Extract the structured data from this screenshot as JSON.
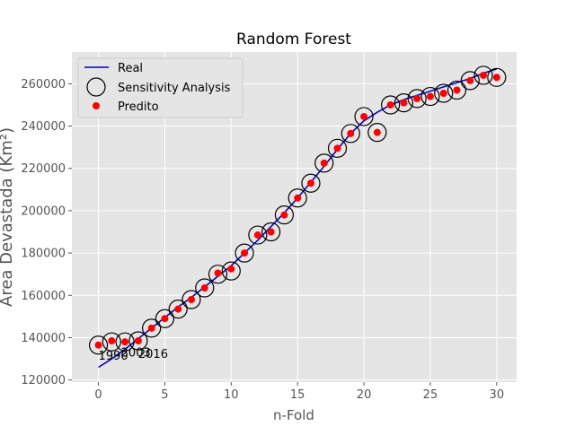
{
  "chart_data": {
    "type": "scatter",
    "title": "Random Forest",
    "xlabel": "n-Fold",
    "ylabel": "Área Devastada (Km²)",
    "xlim": [
      -2,
      31.5
    ],
    "ylim": [
      119000,
      275000
    ],
    "xticks": [
      0,
      5,
      10,
      15,
      20,
      25,
      30
    ],
    "yticks": [
      120000,
      140000,
      160000,
      180000,
      200000,
      220000,
      240000,
      260000
    ],
    "grid": true,
    "legend_position": "upper-left",
    "colors": {
      "background": "#e5e5e5",
      "grid": "#ffffff",
      "real": "#0000cc",
      "predito": "#ff0000",
      "sensitivity_edge": "#000000"
    },
    "series": [
      {
        "name": "Real",
        "style": "line",
        "x": [
          0,
          1,
          2,
          3,
          4,
          5,
          6,
          7,
          8,
          9,
          10,
          11,
          12,
          13,
          14,
          15,
          16,
          17,
          18,
          19,
          20,
          21,
          22,
          23,
          24,
          25,
          26,
          27,
          28,
          29,
          30
        ],
        "values": [
          126000,
          130000,
          134500,
          139500,
          144500,
          149500,
          154500,
          159000,
          164000,
          169000,
          174000,
          180000,
          186000,
          192500,
          199000,
          206000,
          213500,
          221000,
          229000,
          236500,
          242500,
          246500,
          250000,
          252500,
          254500,
          256500,
          258500,
          260500,
          262500,
          265000,
          267000
        ]
      },
      {
        "name": "Sensitivity Analysis",
        "style": "open-circle",
        "x": [
          0,
          1,
          2,
          3,
          4,
          5,
          6,
          7,
          8,
          9,
          10,
          11,
          12,
          13,
          14,
          15,
          16,
          17,
          18,
          19,
          20,
          21,
          22,
          23,
          24,
          25,
          26,
          27,
          28,
          29,
          30
        ],
        "values": [
          136500,
          138000,
          138000,
          138500,
          144500,
          149000,
          153500,
          158000,
          163500,
          170000,
          171500,
          180000,
          188500,
          190000,
          198000,
          206000,
          213000,
          222500,
          229500,
          236500,
          244500,
          237000,
          250000,
          251000,
          253000,
          254000,
          255500,
          257000,
          261500,
          264000,
          263000
        ]
      },
      {
        "name": "Predito",
        "style": "dot",
        "x": [
          0,
          1,
          2,
          3,
          4,
          5,
          6,
          7,
          8,
          9,
          10,
          11,
          12,
          13,
          14,
          15,
          16,
          17,
          18,
          19,
          20,
          21,
          22,
          23,
          24,
          25,
          26,
          27,
          28,
          29,
          30
        ],
        "values": [
          136500,
          138500,
          138000,
          138500,
          144500,
          149000,
          153500,
          158000,
          163500,
          170500,
          172500,
          180000,
          188500,
          190000,
          198000,
          206000,
          213000,
          222500,
          229500,
          236500,
          244500,
          237000,
          250000,
          251000,
          253000,
          254000,
          255500,
          257000,
          261500,
          264000,
          263000
        ]
      }
    ],
    "annotations": [
      {
        "text": "1990",
        "x": 0,
        "y": 129500
      },
      {
        "text": "2003",
        "x": 1.7,
        "y": 131000
      },
      {
        "text": "2016",
        "x": 3,
        "y": 130500
      }
    ]
  }
}
